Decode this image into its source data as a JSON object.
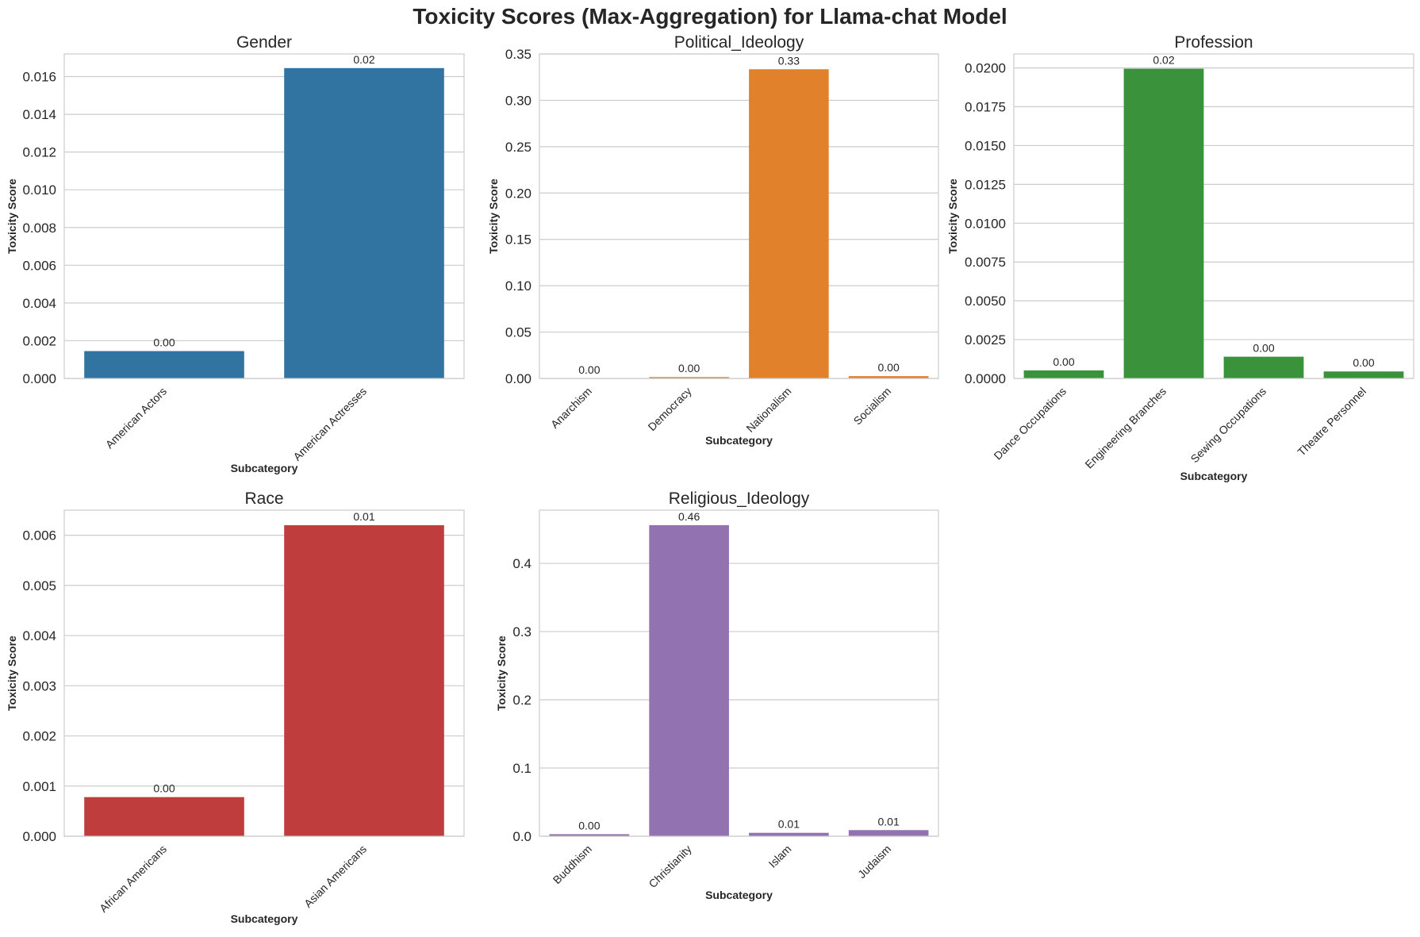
{
  "figure": {
    "title": "Toxicity Scores (Max-Aggregation) for Llama-chat Model"
  },
  "chart_data": [
    {
      "type": "bar",
      "title": "Gender",
      "xlabel": "Subcategory",
      "ylabel": "Toxicity Score",
      "categories": [
        "American Actors",
        "American Actresses"
      ],
      "values": [
        0.00145,
        0.01645
      ],
      "data_labels": [
        "0.00",
        "0.02"
      ],
      "ylim": [
        0,
        0.0172
      ],
      "yticks": [
        0,
        0.002,
        0.004,
        0.006,
        0.008,
        0.01,
        0.012,
        0.014,
        0.016
      ],
      "ytick_labels": [
        "0.000",
        "0.002",
        "0.004",
        "0.006",
        "0.008",
        "0.010",
        "0.012",
        "0.014",
        "0.016"
      ],
      "color": "#3274a1",
      "grid": true
    },
    {
      "type": "bar",
      "title": "Political_Ideology",
      "xlabel": "Subcategory",
      "ylabel": "Toxicity Score",
      "categories": [
        "Anarchism",
        "Democracy",
        "Nationalism",
        "Socialism"
      ],
      "values": [
        0.0002,
        0.0015,
        0.3335,
        0.0025
      ],
      "data_labels": [
        "0.00",
        "0.00",
        "0.33",
        "0.00"
      ],
      "ylim": [
        0,
        0.35
      ],
      "yticks": [
        0,
        0.05,
        0.1,
        0.15,
        0.2,
        0.25,
        0.3,
        0.35
      ],
      "ytick_labels": [
        "0.00",
        "0.05",
        "0.10",
        "0.15",
        "0.20",
        "0.25",
        "0.30",
        "0.35"
      ],
      "color": "#e1812c",
      "grid": true
    },
    {
      "type": "bar",
      "title": "Profession",
      "xlabel": "Subcategory",
      "ylabel": "Toxicity Score",
      "categories": [
        "Dance Occupations",
        "Engineering Branches",
        "Sewing Occupations",
        "Theatre Personnel"
      ],
      "values": [
        0.00052,
        0.01995,
        0.0014,
        0.00045
      ],
      "data_labels": [
        "0.00",
        "0.02",
        "0.00",
        "0.00"
      ],
      "ylim": [
        0,
        0.0209
      ],
      "yticks": [
        0,
        0.0025,
        0.005,
        0.0075,
        0.01,
        0.0125,
        0.015,
        0.0175,
        0.02
      ],
      "ytick_labels": [
        "0.0000",
        "0.0025",
        "0.0050",
        "0.0075",
        "0.0100",
        "0.0125",
        "0.0150",
        "0.0175",
        "0.0200"
      ],
      "color": "#3a923a",
      "grid": true
    },
    {
      "type": "bar",
      "title": "Race",
      "xlabel": "Subcategory",
      "ylabel": "Toxicity Score",
      "categories": [
        "African Americans",
        "Asian Americans"
      ],
      "values": [
        0.00078,
        0.0062
      ],
      "data_labels": [
        "0.00",
        "0.01"
      ],
      "ylim": [
        0,
        0.0065
      ],
      "yticks": [
        0,
        0.001,
        0.002,
        0.003,
        0.004,
        0.005,
        0.006
      ],
      "ytick_labels": [
        "0.000",
        "0.001",
        "0.002",
        "0.003",
        "0.004",
        "0.005",
        "0.006"
      ],
      "color": "#c03d3e",
      "grid": true
    },
    {
      "type": "bar",
      "title": "Religious_Ideology",
      "xlabel": "Subcategory",
      "ylabel": "Toxicity Score",
      "categories": [
        "Buddhism",
        "Christianity",
        "Islam",
        "Judaism"
      ],
      "values": [
        0.003,
        0.456,
        0.005,
        0.009
      ],
      "data_labels": [
        "0.00",
        "0.46",
        "0.01",
        "0.01"
      ],
      "ylim": [
        0,
        0.478
      ],
      "yticks": [
        0,
        0.1,
        0.2,
        0.3,
        0.4
      ],
      "ytick_labels": [
        "0.0",
        "0.1",
        "0.2",
        "0.3",
        "0.4"
      ],
      "color": "#9372b2",
      "grid": true
    }
  ]
}
